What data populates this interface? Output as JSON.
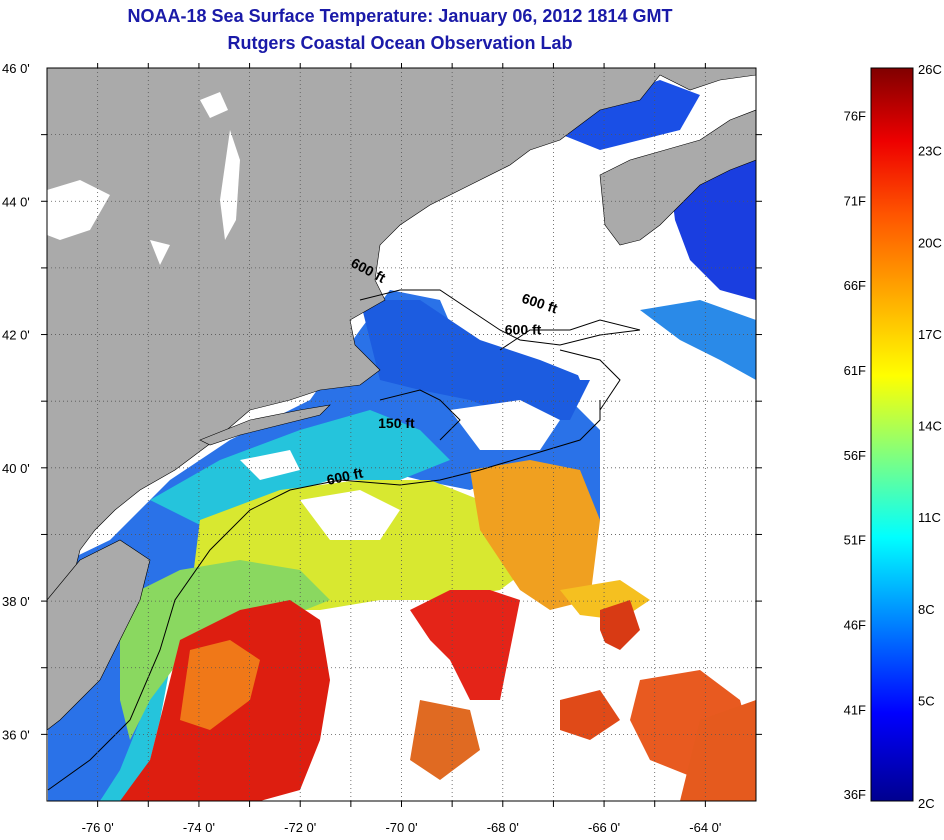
{
  "header": {
    "title": "NOAA-18 Sea Surface Temperature:  January 06, 2012 1814 GMT",
    "subtitle": "Rutgers Coastal Ocean Observation Lab"
  },
  "map": {
    "lat_labels": [
      "46 0'",
      "44 0'",
      "42 0'",
      "40 0'",
      "38 0'",
      "36 0'"
    ],
    "lon_labels": [
      "-76 0'",
      "-74 0'",
      "-72 0'",
      "-70 0'",
      "-68 0'",
      "-66 0'",
      "-64 0'"
    ],
    "lat_range": [
      35,
      46
    ],
    "lon_range": [
      -77,
      -63
    ],
    "grid": "dotted",
    "contour_labels": [
      {
        "text": "600 ft",
        "lon": -70.7,
        "lat": 42.9,
        "angle": 28
      },
      {
        "text": "600 ft",
        "lon": -67.3,
        "lat": 42.4,
        "angle": 18
      },
      {
        "text": "600 ft",
        "lon": -67.6,
        "lat": 42.0,
        "angle": 0
      },
      {
        "text": "150 ft",
        "lon": -70.1,
        "lat": 40.6,
        "angle": 0
      },
      {
        "text": "600 ft",
        "lon": -71.1,
        "lat": 39.8,
        "angle": -12
      }
    ]
  },
  "colorbar": {
    "left_labels": [
      "76F",
      "71F",
      "66F",
      "61F",
      "56F",
      "51F",
      "46F",
      "41F",
      "36F"
    ],
    "right_labels": [
      "26C",
      "23C",
      "20C",
      "17C",
      "14C",
      "11C",
      "8C",
      "5C",
      "2C"
    ],
    "range_c": [
      2,
      26
    ]
  },
  "colors": {
    "title": "#1a1aa8",
    "land": "#aaaaaa",
    "clouds": "#ffffff"
  }
}
